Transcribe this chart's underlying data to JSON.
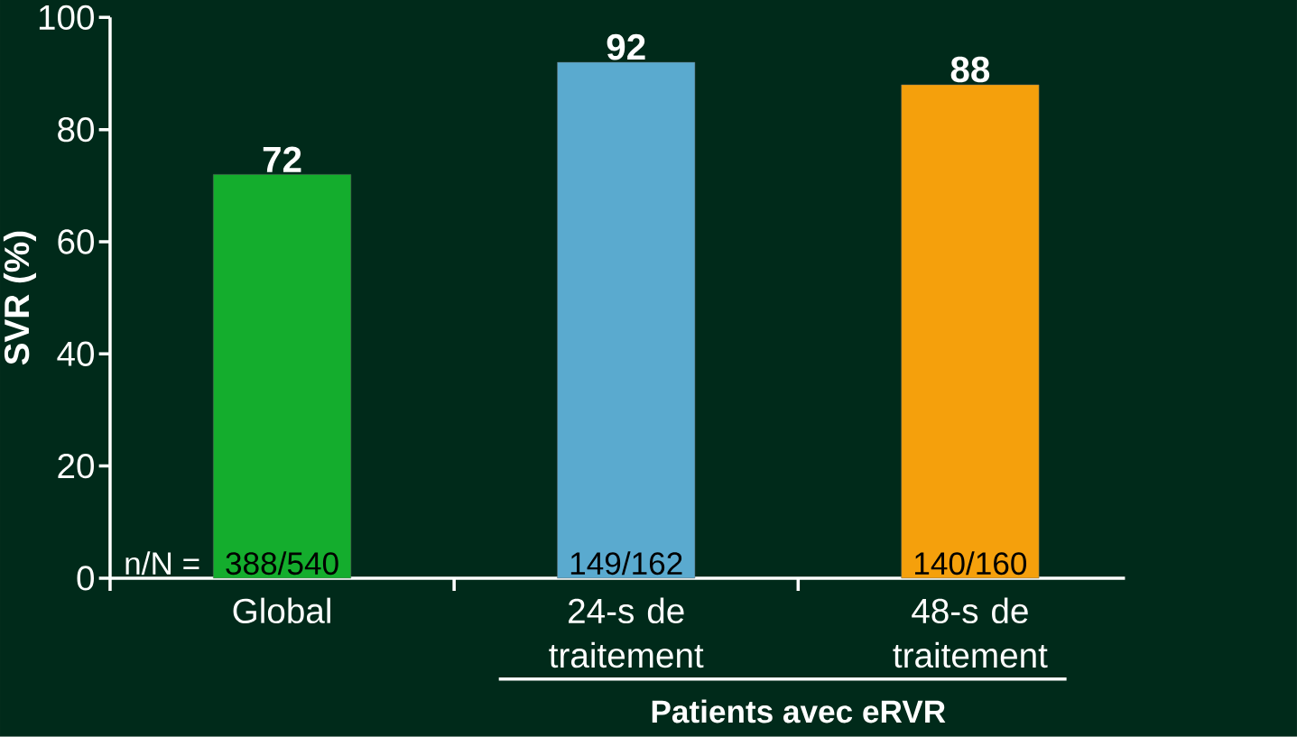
{
  "chart_data": {
    "type": "bar",
    "categories": [
      "Global",
      "24-s de traitement",
      "48-s de traitement"
    ],
    "values": [
      72,
      92,
      88
    ],
    "colors": [
      "#14ad2d",
      "#5aaacf",
      "#f5a00c"
    ],
    "data_labels": true,
    "ylim": [
      0,
      100
    ],
    "yticks": [
      0,
      20,
      40,
      60,
      80,
      100
    ],
    "ylabel": "SVR (%)",
    "xlabel": "Patients avec eRVR",
    "annotations": [
      "n/N =",
      "388/540",
      "149/162",
      "140/160"
    ]
  }
}
